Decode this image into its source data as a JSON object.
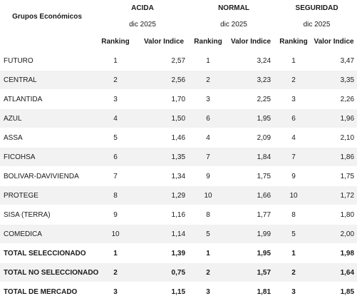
{
  "header": {
    "group_col_label": "Grupos Económicos",
    "groups": [
      "ACIDA",
      "NORMAL",
      "SEGURIDAD"
    ],
    "period": "dic 2025",
    "ranking_label": "Ranking",
    "value_label": "Valor Indice"
  },
  "rows": [
    {
      "name": "FUTURO",
      "acida_rank": "1",
      "acida_val": "2,57",
      "normal_rank": "1",
      "normal_val": "3,24",
      "seg_rank": "1",
      "seg_val": "3,47"
    },
    {
      "name": "CENTRAL",
      "acida_rank": "2",
      "acida_val": "2,56",
      "normal_rank": "2",
      "normal_val": "3,23",
      "seg_rank": "2",
      "seg_val": "3,35"
    },
    {
      "name": "ATLANTIDA",
      "acida_rank": "3",
      "acida_val": "1,70",
      "normal_rank": "3",
      "normal_val": "2,25",
      "seg_rank": "3",
      "seg_val": "2,26"
    },
    {
      "name": "AZUL",
      "acida_rank": "4",
      "acida_val": "1,50",
      "normal_rank": "6",
      "normal_val": "1,95",
      "seg_rank": "6",
      "seg_val": "1,96"
    },
    {
      "name": "ASSA",
      "acida_rank": "5",
      "acida_val": "1,46",
      "normal_rank": "4",
      "normal_val": "2,09",
      "seg_rank": "4",
      "seg_val": "2,10"
    },
    {
      "name": "FICOHSA",
      "acida_rank": "6",
      "acida_val": "1,35",
      "normal_rank": "7",
      "normal_val": "1,84",
      "seg_rank": "7",
      "seg_val": "1,86"
    },
    {
      "name": "BOLIVAR-DAVIVIENDA",
      "acida_rank": "7",
      "acida_val": "1,34",
      "normal_rank": "9",
      "normal_val": "1,75",
      "seg_rank": "9",
      "seg_val": "1,75"
    },
    {
      "name": "PROTEGE",
      "acida_rank": "8",
      "acida_val": "1,29",
      "normal_rank": "10",
      "normal_val": "1,66",
      "seg_rank": "10",
      "seg_val": "1,72"
    },
    {
      "name": "SISA (TERRA)",
      "acida_rank": "9",
      "acida_val": "1,16",
      "normal_rank": "8",
      "normal_val": "1,77",
      "seg_rank": "8",
      "seg_val": "1,80"
    },
    {
      "name": "COMEDICA",
      "acida_rank": "10",
      "acida_val": "1,14",
      "normal_rank": "5",
      "normal_val": "1,99",
      "seg_rank": "5",
      "seg_val": "2,00"
    },
    {
      "name": "TOTAL SELECCIONADO",
      "acida_rank": "1",
      "acida_val": "1,39",
      "normal_rank": "1",
      "normal_val": "1,95",
      "seg_rank": "1",
      "seg_val": "1,98",
      "total": true
    },
    {
      "name": "TOTAL NO SELECCIONADO",
      "acida_rank": "2",
      "acida_val": "0,75",
      "normal_rank": "2",
      "normal_val": "1,57",
      "seg_rank": "2",
      "seg_val": "1,64",
      "total": true
    },
    {
      "name": "TOTAL DE MERCADO",
      "acida_rank": "3",
      "acida_val": "1,15",
      "normal_rank": "3",
      "normal_val": "1,81",
      "seg_rank": "3",
      "seg_val": "1,85",
      "total": true
    }
  ]
}
